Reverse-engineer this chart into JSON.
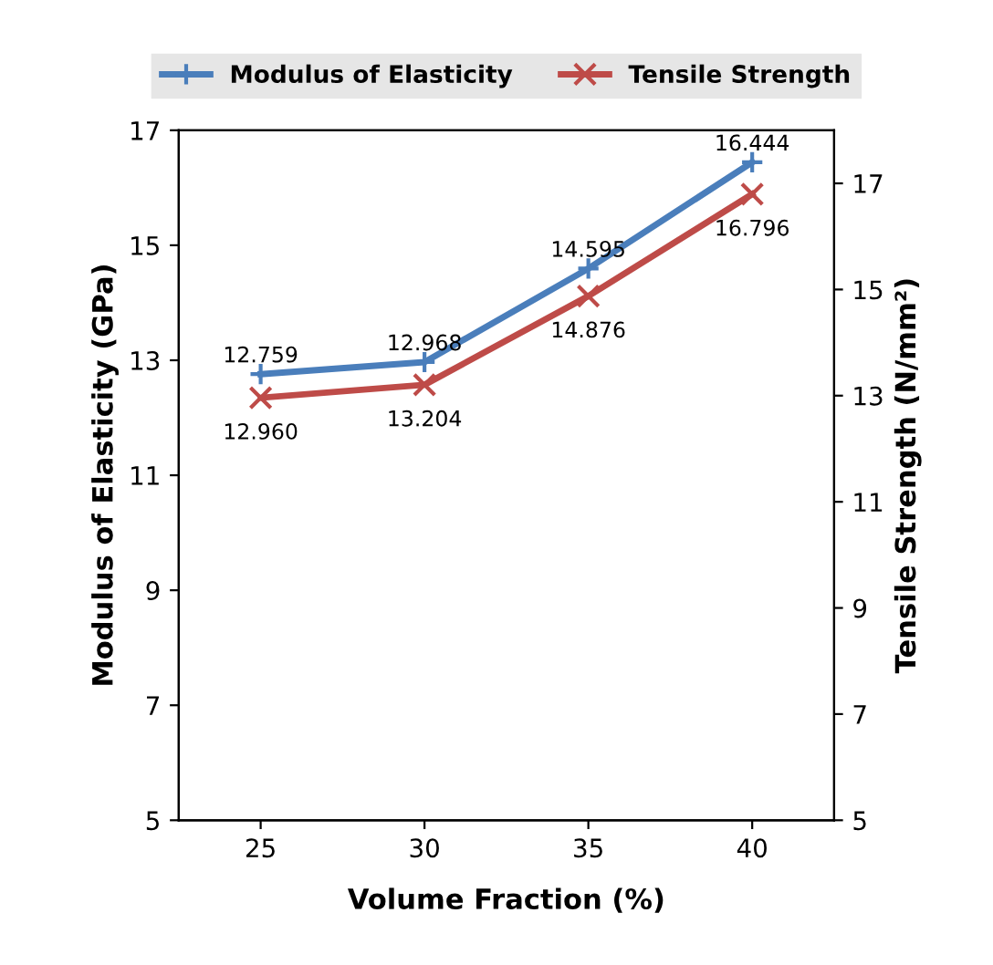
{
  "chart_data": {
    "type": "line",
    "xlabel": "Volume Fraction (%)",
    "ylabel": "Modulus of Elasticity (GPa)",
    "y2label": "Tensile Strength (N/mm²)",
    "categories": [
      "25",
      "30",
      "35",
      "40"
    ],
    "series": [
      {
        "name": "Modulus of Elasticity",
        "color": "#4a7ebb",
        "marker": "plus",
        "values": [
          12.759,
          12.968,
          14.595,
          16.444
        ],
        "value_labels": [
          "12.759",
          "12.968",
          "14.595",
          "16.444"
        ]
      },
      {
        "name": "Tensile Strength",
        "color": "#be4b48",
        "marker": "cross",
        "axis": "y2",
        "values": [
          12.96,
          13.204,
          14.876,
          16.796
        ],
        "value_labels": [
          "12.960",
          "13.204",
          "14.876",
          "16.796"
        ]
      }
    ],
    "ylim": [
      5,
      17
    ],
    "yticks": [
      5,
      7,
      9,
      11,
      13,
      15,
      17
    ],
    "y2lim": [
      5,
      18
    ],
    "y2ticks": [
      5,
      7,
      9,
      11,
      13,
      15,
      17
    ],
    "legend": "top",
    "grid": false
  }
}
